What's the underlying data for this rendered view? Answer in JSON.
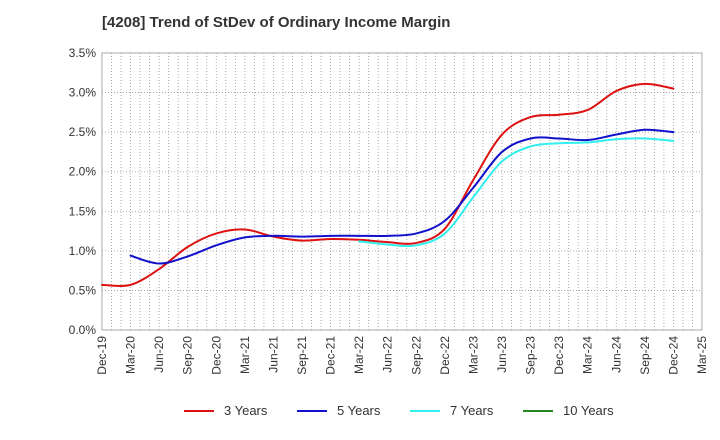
{
  "chart_data": {
    "type": "line",
    "title": "[4208]  Trend of StDev of Ordinary Income Margin",
    "xlabel": "",
    "ylabel": "",
    "x_ticks": [
      "Dec-19",
      "Mar-20",
      "Jun-20",
      "Sep-20",
      "Dec-20",
      "Mar-21",
      "Jun-21",
      "Sep-21",
      "Dec-21",
      "Mar-22",
      "Jun-22",
      "Sep-22",
      "Dec-22",
      "Mar-23",
      "Jun-23",
      "Sep-23",
      "Dec-23",
      "Mar-24",
      "Jun-24",
      "Sep-24",
      "Dec-24",
      "Mar-25"
    ],
    "y_ticks": [
      "0.0%",
      "0.5%",
      "1.0%",
      "1.5%",
      "2.0%",
      "2.5%",
      "3.0%",
      "3.5%"
    ],
    "ylim": [
      0,
      3.5
    ],
    "y_unit": "%",
    "grid": true,
    "legend_position": "bottom",
    "series": [
      {
        "name": "3 Years",
        "color": "#dd1111",
        "x": [
          "Dec-19",
          "Mar-20",
          "Jun-20",
          "Sep-20",
          "Dec-20",
          "Mar-21",
          "Jun-21",
          "Sep-21",
          "Dec-21",
          "Mar-22",
          "Jun-22",
          "Sep-22",
          "Dec-22",
          "Mar-23",
          "Jun-23",
          "Sep-23",
          "Dec-23",
          "Mar-24",
          "Jun-24",
          "Sep-24",
          "Dec-24"
        ],
        "values": [
          0.57,
          0.57,
          0.77,
          1.05,
          1.22,
          1.27,
          1.18,
          1.13,
          1.15,
          1.14,
          1.11,
          1.1,
          1.28,
          1.9,
          2.47,
          2.69,
          2.72,
          2.78,
          3.02,
          3.11,
          3.05
        ]
      },
      {
        "name": "5 Years",
        "color": "#1111cc",
        "x": [
          "Mar-20",
          "Jun-20",
          "Sep-20",
          "Dec-20",
          "Mar-21",
          "Jun-21",
          "Sep-21",
          "Dec-21",
          "Mar-22",
          "Jun-22",
          "Sep-22",
          "Dec-22",
          "Mar-23",
          "Jun-23",
          "Sep-23",
          "Dec-23",
          "Mar-24",
          "Jun-24",
          "Sep-24",
          "Dec-24"
        ],
        "values": [
          0.94,
          0.84,
          0.93,
          1.07,
          1.17,
          1.19,
          1.18,
          1.19,
          1.19,
          1.19,
          1.22,
          1.38,
          1.8,
          2.25,
          2.42,
          2.42,
          2.4,
          2.47,
          2.53,
          2.5
        ]
      },
      {
        "name": "7 Years",
        "color": "#33eeee",
        "x": [
          "Mar-22",
          "Jun-22",
          "Sep-22",
          "Dec-22",
          "Mar-23",
          "Jun-23",
          "Sep-23",
          "Dec-23",
          "Mar-24",
          "Jun-24",
          "Sep-24",
          "Dec-24"
        ],
        "values": [
          1.12,
          1.08,
          1.07,
          1.22,
          1.68,
          2.13,
          2.32,
          2.36,
          2.37,
          2.41,
          2.42,
          2.39
        ]
      },
      {
        "name": "10 Years",
        "color": "#228822",
        "x": [],
        "values": []
      }
    ]
  }
}
